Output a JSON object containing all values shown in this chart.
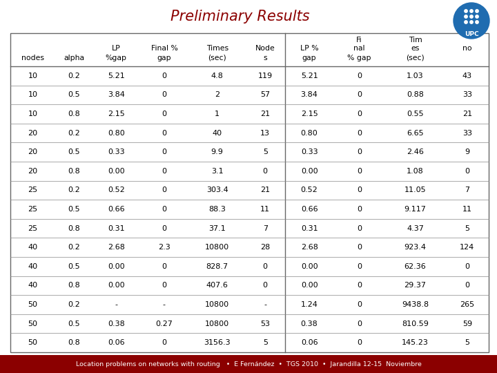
{
  "title": "Preliminary Results",
  "title_color": "#8B0000",
  "title_fontsize": 15,
  "background_color": "#ffffff",
  "data": [
    [
      "10",
      "0.2",
      "5.21",
      "0",
      "4.8",
      "119",
      "5.21",
      "0",
      "1.03",
      "43"
    ],
    [
      "10",
      "0.5",
      "3.84",
      "0",
      "2",
      "57",
      "3.84",
      "0",
      "0.88",
      "33"
    ],
    [
      "10",
      "0.8",
      "2.15",
      "0",
      "1",
      "21",
      "2.15",
      "0",
      "0.55",
      "21"
    ],
    [
      "20",
      "0.2",
      "0.80",
      "0",
      "40",
      "13",
      "0.80",
      "0",
      "6.65",
      "33"
    ],
    [
      "20",
      "0.5",
      "0.33",
      "0",
      "9.9",
      "5",
      "0.33",
      "0",
      "2.46",
      "9"
    ],
    [
      "20",
      "0.8",
      "0.00",
      "0",
      "3.1",
      "0",
      "0.00",
      "0",
      "1.08",
      "0"
    ],
    [
      "25",
      "0.2",
      "0.52",
      "0",
      "303.4",
      "21",
      "0.52",
      "0",
      "11.05",
      "7"
    ],
    [
      "25",
      "0.5",
      "0.66",
      "0",
      "88.3",
      "11",
      "0.66",
      "0",
      "9.117",
      "11"
    ],
    [
      "25",
      "0.8",
      "0.31",
      "0",
      "37.1",
      "7",
      "0.31",
      "0",
      "4.37",
      "5"
    ],
    [
      "40",
      "0.2",
      "2.68",
      "2.3",
      "10800",
      "28",
      "2.68",
      "0",
      "923.4",
      "124"
    ],
    [
      "40",
      "0.5",
      "0.00",
      "0",
      "828.7",
      "0",
      "0.00",
      "0",
      "62.36",
      "0"
    ],
    [
      "40",
      "0.8",
      "0.00",
      "0",
      "407.6",
      "0",
      "0.00",
      "0",
      "29.37",
      "0"
    ],
    [
      "50",
      "0.2",
      "-",
      "-",
      "10800",
      "-",
      "1.24",
      "0",
      "9438.8",
      "265"
    ],
    [
      "50",
      "0.5",
      "0.38",
      "0.27",
      "10800",
      "53",
      "0.38",
      "0",
      "810.59",
      "59"
    ],
    [
      "50",
      "0.8",
      "0.06",
      "0",
      "3156.3",
      "5",
      "0.06",
      "0",
      "145.23",
      "5"
    ]
  ],
  "footer_text": "Location problems on networks with routing   •  E Fernández  •  TGS 2010  •  Jarandilla 12-15  Noviembre",
  "footer_bg": "#8B0000",
  "footer_color": "#ffffff",
  "upc_circle_color": "#1F6CB0",
  "border_color": "#666666",
  "line_color": "#888888"
}
